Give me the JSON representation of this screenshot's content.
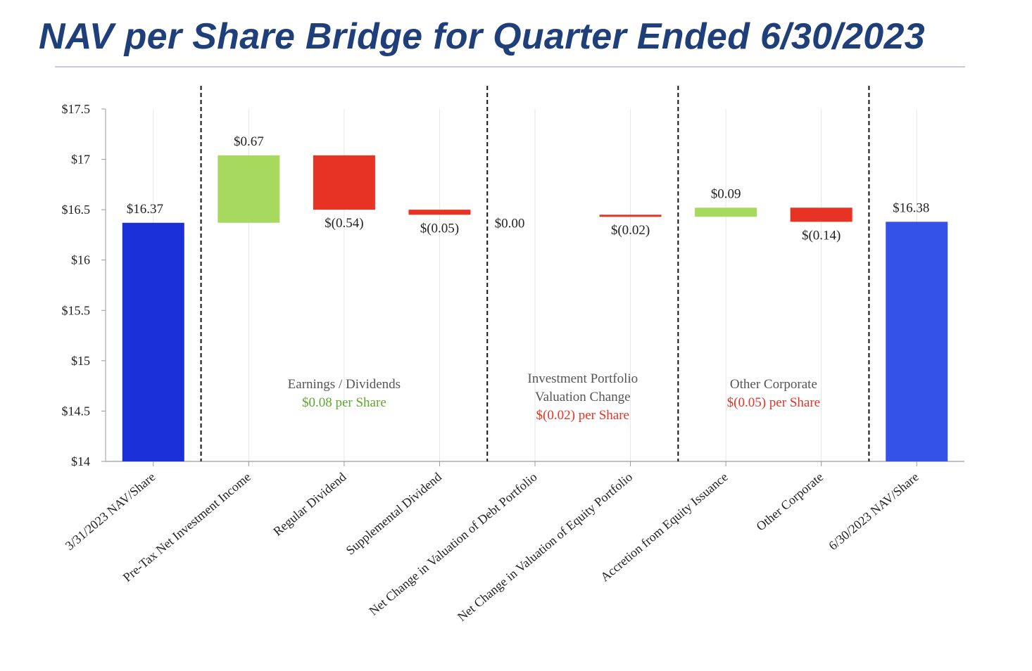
{
  "title": "NAV per Share Bridge for Quarter Ended 6/30/2023",
  "chart_data": {
    "type": "bar",
    "subtype": "waterfall",
    "title": "NAV per Share Bridge for Quarter Ended 6/30/2023",
    "xlabel": "",
    "ylabel": "",
    "ylim": [
      14,
      17.5
    ],
    "yticks": [
      {
        "value": 14,
        "label": "$14"
      },
      {
        "value": 14.5,
        "label": "$14.5"
      },
      {
        "value": 15,
        "label": "$15"
      },
      {
        "value": 15.5,
        "label": "$15.5"
      },
      {
        "value": 16,
        "label": "$16"
      },
      {
        "value": 16.5,
        "label": "$16.5"
      },
      {
        "value": 17,
        "label": "$17"
      },
      {
        "value": 17.5,
        "label": "$17.5"
      }
    ],
    "grid": true,
    "bars": [
      {
        "category": "3/31/2023 NAV/Share",
        "kind": "total",
        "start": 14,
        "end": 16.37,
        "label": "$16.37",
        "color": "#1a2fd6"
      },
      {
        "category": "Pre-Tax Net Investment Income",
        "kind": "increase",
        "start": 16.37,
        "end": 17.04,
        "label": "$0.67",
        "color": "#a6d95e"
      },
      {
        "category": "Regular Dividend",
        "kind": "decrease",
        "start": 17.04,
        "end": 16.5,
        "label": "$(0.54)",
        "color": "#e63323"
      },
      {
        "category": "Supplemental Dividend",
        "kind": "decrease",
        "start": 16.5,
        "end": 16.45,
        "label": "$(0.05)",
        "color": "#e63323"
      },
      {
        "category": "Net Change in Valuation of Debt Portfolio",
        "kind": "increase",
        "start": 16.45,
        "end": 16.45,
        "label": "$0.00",
        "color": "#a6d95e"
      },
      {
        "category": "Net Change in Valuation of Equity Portfolio",
        "kind": "decrease",
        "start": 16.45,
        "end": 16.43,
        "label": "$(0.02)",
        "color": "#e63323"
      },
      {
        "category": "Accretion from Equity Issuance",
        "kind": "increase",
        "start": 16.43,
        "end": 16.52,
        "label": "$0.09",
        "color": "#a6d95e"
      },
      {
        "category": "Other Corporate",
        "kind": "decrease",
        "start": 16.52,
        "end": 16.38,
        "label": "$(0.14)",
        "color": "#e63323"
      },
      {
        "category": "6/30/2023 NAV/Share",
        "kind": "total",
        "start": 14,
        "end": 16.38,
        "label": "$16.38",
        "color": "#3552e8"
      }
    ],
    "groups": [
      {
        "name": "Earnings / Dividends",
        "lines": [
          "Earnings / Dividends"
        ],
        "summary": "$0.08 per Share",
        "summary_color": "#5aa82c"
      },
      {
        "name": "Investment Portfolio Valuation Change",
        "lines": [
          "Investment Portfolio",
          "Valuation Change"
        ],
        "summary": "$(0.02) per Share",
        "summary_color": "#e63323"
      },
      {
        "name": "Other Corporate",
        "lines": [
          "Other Corporate"
        ],
        "summary": "$(0.05) per Share",
        "summary_color": "#e63323"
      }
    ],
    "colors": {
      "total_start": "#1a2fd6",
      "total_end": "#3552e8",
      "increase": "#a6d95e",
      "decrease": "#e63323",
      "text": "#222222",
      "group_text": "#555555"
    }
  }
}
